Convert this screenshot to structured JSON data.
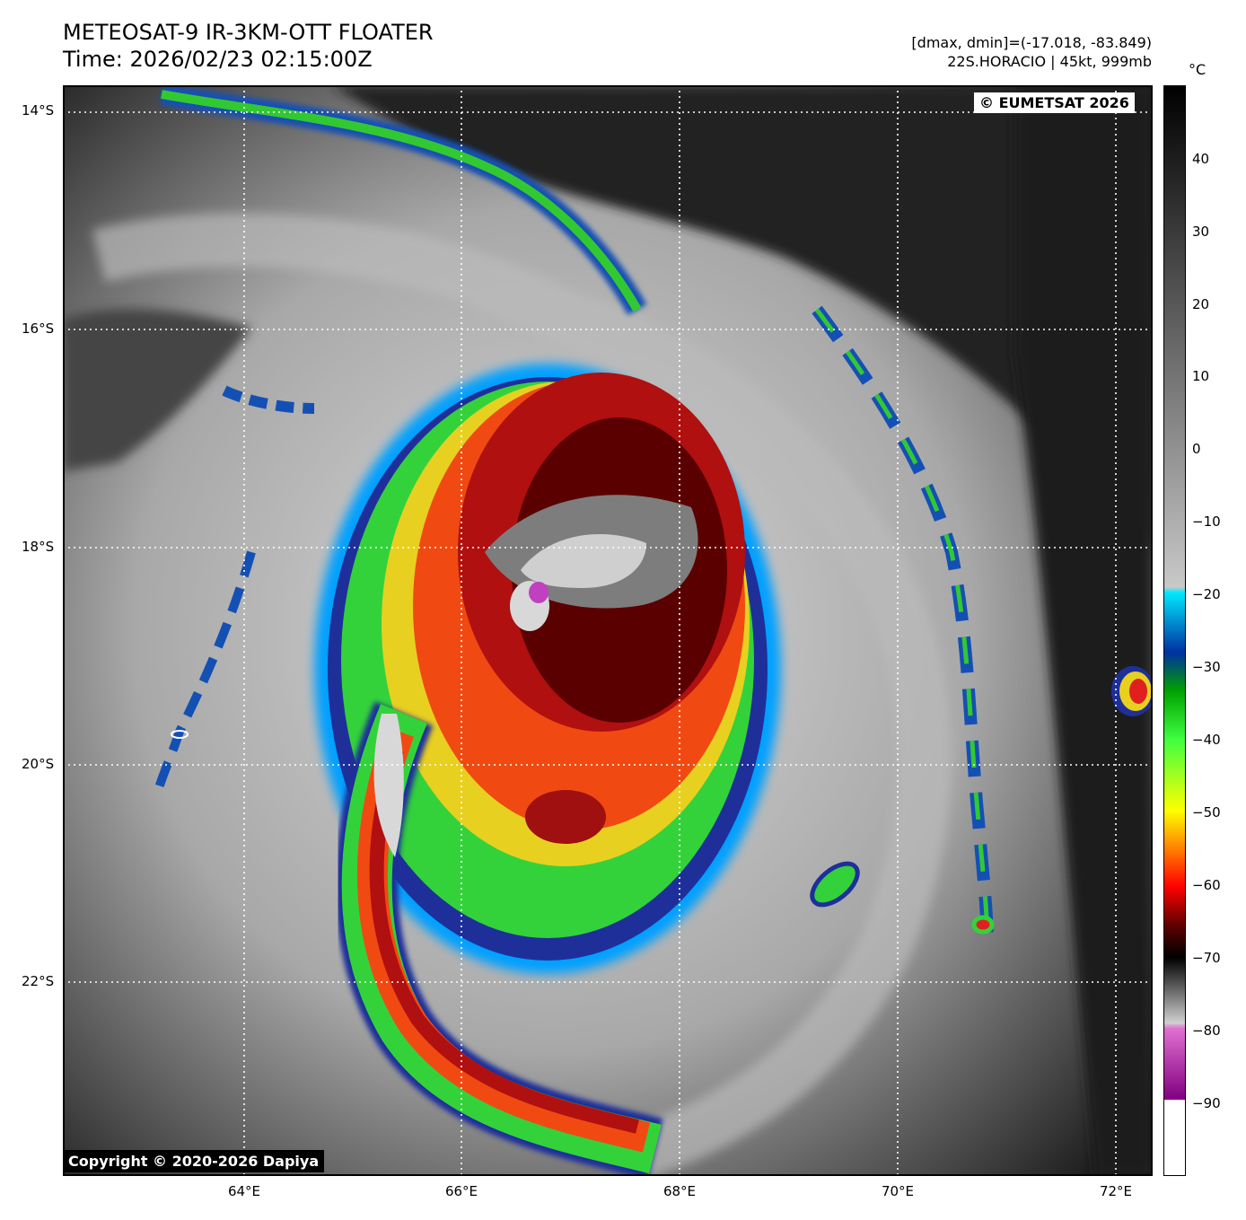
{
  "title": {
    "line1": "METEOSAT-9 IR-3KM-OTT FLOATER",
    "line2": "Time: 2026/02/23 02:15:00Z"
  },
  "meta": {
    "line1": "[dmax, dmin]=(-17.018, -83.849)",
    "line2": "22S.HORACIO | 45kt, 999mb"
  },
  "colorbar": {
    "unit": "°C",
    "ticks": [
      "40",
      "30",
      "20",
      "10",
      "0",
      "−10",
      "−20",
      "−30",
      "−40",
      "−50",
      "−60",
      "−70",
      "−80",
      "−90"
    ]
  },
  "map": {
    "lat_labels": [
      "14°S",
      "16°S",
      "18°S",
      "20°S",
      "22°S"
    ],
    "lon_labels": [
      "64°E",
      "66°E",
      "68°E",
      "70°E",
      "72°E"
    ]
  },
  "credits": {
    "top_right": "© EUMETSAT 2026",
    "bottom_left": "Copyright © 2020-2026 Dapiya"
  }
}
